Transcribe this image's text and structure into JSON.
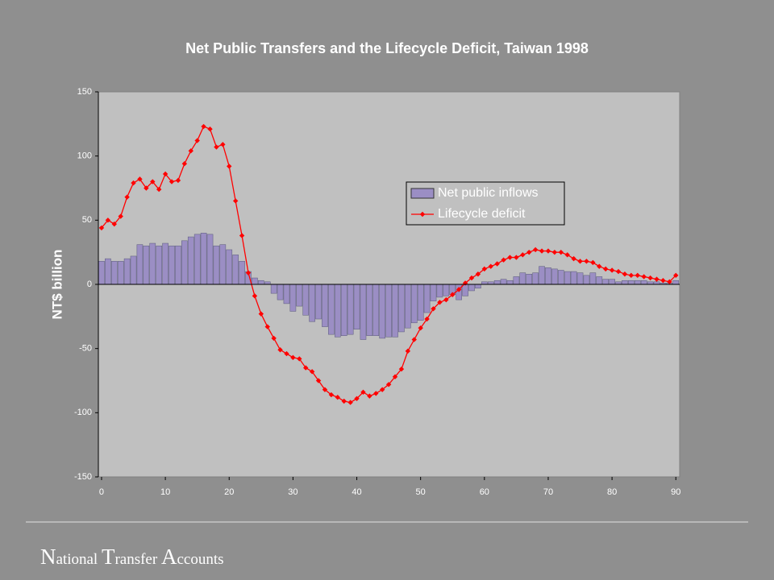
{
  "chart_data": {
    "type": "bar_line",
    "title": "Net Public Transfers and the Lifecycle Deficit, Taiwan 1998",
    "y_label": "NT$ billion",
    "x": [
      0,
      1,
      2,
      3,
      4,
      5,
      6,
      7,
      8,
      9,
      10,
      11,
      12,
      13,
      14,
      15,
      16,
      17,
      18,
      19,
      20,
      21,
      22,
      23,
      24,
      25,
      26,
      27,
      28,
      29,
      30,
      31,
      32,
      33,
      34,
      35,
      36,
      37,
      38,
      39,
      40,
      41,
      42,
      43,
      44,
      45,
      46,
      47,
      48,
      49,
      50,
      51,
      52,
      53,
      54,
      55,
      56,
      57,
      58,
      59,
      60,
      61,
      62,
      63,
      64,
      65,
      66,
      67,
      68,
      69,
      70,
      71,
      72,
      73,
      74,
      75,
      76,
      77,
      78,
      79,
      80,
      81,
      82,
      83,
      84,
      85,
      86,
      87,
      88,
      89,
      90
    ],
    "series": [
      {
        "name": "Net  public inflows",
        "kind": "bar",
        "color": "#9b8ec4",
        "values": [
          18,
          20,
          18,
          18,
          20,
          22,
          31,
          30,
          32,
          30,
          32,
          30,
          30,
          34,
          37,
          39,
          40,
          39,
          30,
          31,
          27,
          23,
          18,
          10,
          5,
          3,
          2,
          -7,
          -12,
          -15,
          -21,
          -17,
          -24,
          -29,
          -27,
          -33,
          -39,
          -41,
          -40,
          -39,
          -35,
          -43,
          -40,
          -40,
          -42,
          -41,
          -41,
          -37,
          -34,
          -30,
          -28,
          -22,
          -13,
          -10,
          -9,
          -8,
          -12,
          -9,
          -5,
          -3,
          2,
          2,
          3,
          4,
          3,
          6,
          9,
          8,
          9,
          14,
          13,
          12,
          11,
          10,
          10,
          9,
          7,
          9,
          6,
          4,
          4,
          2,
          3,
          3,
          3,
          3,
          2,
          2,
          1,
          1,
          3
        ]
      },
      {
        "name": "Lifecycle deficit",
        "kind": "line",
        "color": "#ff0000",
        "values": [
          44,
          50,
          47,
          53,
          68,
          79,
          82,
          75,
          80,
          74,
          86,
          80,
          81,
          94,
          104,
          112,
          123,
          121,
          107,
          109,
          92,
          65,
          38,
          9,
          -9,
          -23,
          -33,
          -42,
          -51,
          -54,
          -57,
          -58,
          -65,
          -68,
          -75,
          -82,
          -86,
          -88,
          -91,
          -92,
          -89,
          -84,
          -87,
          -85,
          -82,
          -78,
          -72,
          -66,
          -52,
          -43,
          -34,
          -27,
          -19,
          -14,
          -12,
          -8,
          -4,
          1,
          5,
          8,
          12,
          14,
          16,
          19,
          21,
          21,
          23,
          25,
          27,
          26,
          26,
          25,
          25,
          23,
          20,
          18,
          18,
          17,
          14,
          12,
          11,
          10,
          8,
          7,
          7,
          6,
          5,
          4,
          3,
          2,
          7
        ]
      }
    ],
    "xlim": [
      -0.5,
      90.6
    ],
    "xticks": [
      0,
      10,
      20,
      30,
      40,
      50,
      60,
      70,
      80,
      90
    ],
    "ylim": [
      -150,
      150
    ],
    "yticks": [
      150,
      100,
      50,
      0,
      -50,
      -100,
      -150
    ]
  },
  "footer": "National Transfer Accounts"
}
